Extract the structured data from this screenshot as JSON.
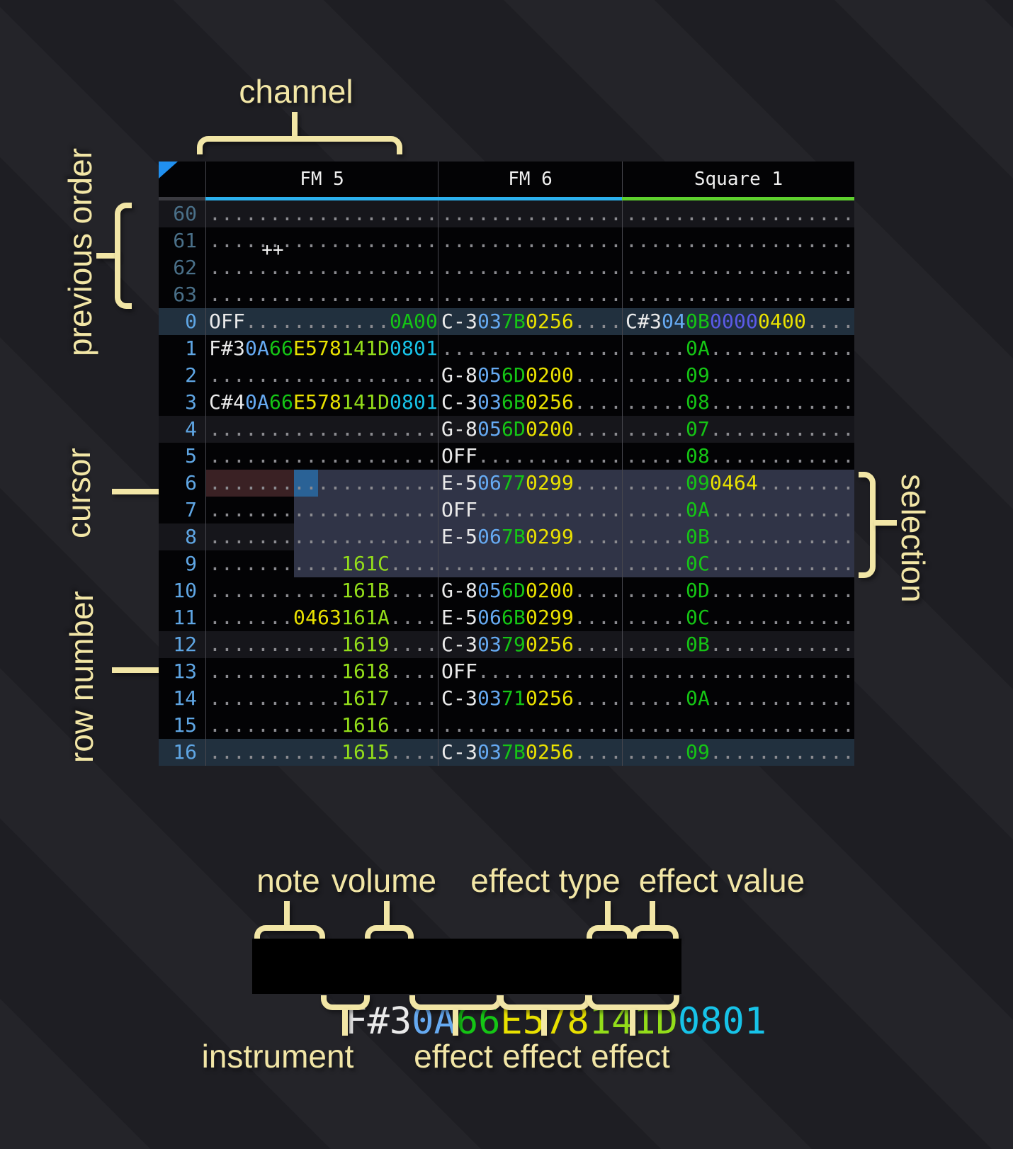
{
  "palette": {
    "khaki": "#f2e6a6",
    "header_text": "#f0f0f0",
    "corner": "#2090f0",
    "rule": "#47474e",
    "hdr_rule": "#3a3a40",
    "row_h4": "#16161b",
    "row_h16": "#21303e",
    "cursor_row": "#3a2124",
    "cursor": "#2a6296",
    "selection": "#303447",
    "rn": "#5fa6e4",
    "rn_past": "#4a7089",
    "note": "#eaeaea",
    "ins": "#66aaf2",
    "vol": "#15c515",
    "fxy": "#e9e100",
    "fxl": "#93dd1a",
    "fxc": "#17c3e8",
    "fxi": "#5a5ae8",
    "fxg": "#15c515",
    "dim": "#8b8b90"
  },
  "header": {
    "corner": "++",
    "channels": [
      {
        "name": "FM 5",
        "accent": "#2cb1ee"
      },
      {
        "name": "FM 6",
        "accent": "#2cb1ee"
      },
      {
        "name": "Square 1",
        "accent": "#5ed02e"
      }
    ]
  },
  "annotations": {
    "channel": "channel",
    "previous_order": "previous order",
    "cursor": "cursor",
    "row_number": "row number",
    "selection": "selection"
  },
  "pattern": {
    "rows": [
      {
        "n": "60",
        "past": true,
        "hl": "h4",
        "ov": "",
        "fm5": [
          [
            "...................",
            "dim"
          ]
        ],
        "fm6": [
          [
            "...............",
            "dim"
          ]
        ],
        "sq1": [
          [
            "...................",
            "dim"
          ]
        ]
      },
      {
        "n": "61",
        "past": true,
        "hl": "",
        "ov": "",
        "fm5": [
          [
            "...................",
            "dim"
          ]
        ],
        "fm6": [
          [
            "...............",
            "dim"
          ]
        ],
        "sq1": [
          [
            "...................",
            "dim"
          ]
        ]
      },
      {
        "n": "62",
        "past": true,
        "hl": "",
        "ov": "",
        "fm5": [
          [
            "...................",
            "dim"
          ]
        ],
        "fm6": [
          [
            "...............",
            "dim"
          ]
        ],
        "sq1": [
          [
            "...................",
            "dim"
          ]
        ]
      },
      {
        "n": "63",
        "past": true,
        "hl": "",
        "ov": "",
        "fm5": [
          [
            "...................",
            "dim"
          ]
        ],
        "fm6": [
          [
            "...............",
            "dim"
          ]
        ],
        "sq1": [
          [
            "...................",
            "dim"
          ]
        ]
      },
      {
        "n": "0",
        "past": false,
        "hl": "h16",
        "ov": "",
        "fm5": [
          [
            "OFF",
            "note"
          ],
          [
            "............",
            "dim"
          ],
          [
            "0A00",
            "fxg"
          ]
        ],
        "fm6": [
          [
            "C-3",
            "note"
          ],
          [
            "03",
            "ins"
          ],
          [
            "7B",
            "vol"
          ],
          [
            "0256",
            "fxy"
          ],
          [
            "....",
            "dim"
          ]
        ],
        "sq1": [
          [
            "C#3",
            "note"
          ],
          [
            "04",
            "ins"
          ],
          [
            "0B",
            "vol"
          ],
          [
            "0000",
            "fxi"
          ],
          [
            "0400",
            "fxy"
          ],
          [
            "....",
            "dim"
          ]
        ]
      },
      {
        "n": "1",
        "past": false,
        "hl": "",
        "ov": "",
        "fm5": [
          [
            "F#3",
            "note"
          ],
          [
            "0A",
            "ins"
          ],
          [
            "66",
            "vol"
          ],
          [
            "E578",
            "fxy"
          ],
          [
            "141D",
            "fxl"
          ],
          [
            "0801",
            "fxc"
          ]
        ],
        "fm6": [
          [
            "...............",
            "dim"
          ]
        ],
        "sq1": [
          [
            ".....",
            "dim"
          ],
          [
            "0A",
            "vol"
          ],
          [
            "............",
            "dim"
          ]
        ]
      },
      {
        "n": "2",
        "past": false,
        "hl": "",
        "ov": "",
        "fm5": [
          [
            "...................",
            "dim"
          ]
        ],
        "fm6": [
          [
            "G-8",
            "note"
          ],
          [
            "05",
            "ins"
          ],
          [
            "6D",
            "vol"
          ],
          [
            "0200",
            "fxy"
          ],
          [
            "....",
            "dim"
          ]
        ],
        "sq1": [
          [
            ".....",
            "dim"
          ],
          [
            "09",
            "vol"
          ],
          [
            "............",
            "dim"
          ]
        ]
      },
      {
        "n": "3",
        "past": false,
        "hl": "",
        "ov": "",
        "fm5": [
          [
            "C#4",
            "note"
          ],
          [
            "0A",
            "ins"
          ],
          [
            "66",
            "vol"
          ],
          [
            "E578",
            "fxy"
          ],
          [
            "141D",
            "fxl"
          ],
          [
            "0801",
            "fxc"
          ]
        ],
        "fm6": [
          [
            "C-3",
            "note"
          ],
          [
            "03",
            "ins"
          ],
          [
            "6B",
            "vol"
          ],
          [
            "0256",
            "fxy"
          ],
          [
            "....",
            "dim"
          ]
        ],
        "sq1": [
          [
            ".....",
            "dim"
          ],
          [
            "08",
            "vol"
          ],
          [
            "............",
            "dim"
          ]
        ]
      },
      {
        "n": "4",
        "past": false,
        "hl": "h4",
        "ov": "",
        "fm5": [
          [
            "...................",
            "dim"
          ]
        ],
        "fm6": [
          [
            "G-8",
            "note"
          ],
          [
            "05",
            "ins"
          ],
          [
            "6D",
            "vol"
          ],
          [
            "0200",
            "fxy"
          ],
          [
            "....",
            "dim"
          ]
        ],
        "sq1": [
          [
            ".....",
            "dim"
          ],
          [
            "07",
            "vol"
          ],
          [
            "............",
            "dim"
          ]
        ]
      },
      {
        "n": "5",
        "past": false,
        "hl": "",
        "ov": "",
        "fm5": [
          [
            "...................",
            "dim"
          ]
        ],
        "fm6": [
          [
            "OFF",
            "note"
          ],
          [
            "............",
            "dim"
          ]
        ],
        "sq1": [
          [
            ".....",
            "dim"
          ],
          [
            "08",
            "vol"
          ],
          [
            "............",
            "dim"
          ]
        ]
      },
      {
        "n": "6",
        "past": false,
        "hl": "",
        "ov": "cursor",
        "fm5": [
          [
            "...................",
            "dim"
          ]
        ],
        "fm6": [
          [
            "E-5",
            "note"
          ],
          [
            "06",
            "ins"
          ],
          [
            "77",
            "vol"
          ],
          [
            "0299",
            "fxy"
          ],
          [
            "....",
            "dim"
          ]
        ],
        "sq1": [
          [
            ".....",
            "dim"
          ],
          [
            "09",
            "vol"
          ],
          [
            "0464",
            "fxy"
          ],
          [
            "........",
            "dim"
          ]
        ]
      },
      {
        "n": "7",
        "past": false,
        "hl": "",
        "ov": "sel",
        "fm5": [
          [
            "...................",
            "dim"
          ]
        ],
        "fm6": [
          [
            "OFF",
            "note"
          ],
          [
            "............",
            "dim"
          ]
        ],
        "sq1": [
          [
            ".....",
            "dim"
          ],
          [
            "0A",
            "vol"
          ],
          [
            "............",
            "dim"
          ]
        ]
      },
      {
        "n": "8",
        "past": false,
        "hl": "h4",
        "ov": "sel",
        "fm5": [
          [
            "...................",
            "dim"
          ]
        ],
        "fm6": [
          [
            "E-5",
            "note"
          ],
          [
            "06",
            "ins"
          ],
          [
            "7B",
            "vol"
          ],
          [
            "0299",
            "fxy"
          ],
          [
            "....",
            "dim"
          ]
        ],
        "sq1": [
          [
            ".....",
            "dim"
          ],
          [
            "0B",
            "vol"
          ],
          [
            "............",
            "dim"
          ]
        ]
      },
      {
        "n": "9",
        "past": false,
        "hl": "",
        "ov": "sel",
        "fm5": [
          [
            "...........",
            "dim"
          ],
          [
            "161C",
            "fxl"
          ],
          [
            "....",
            "dim"
          ]
        ],
        "fm6": [
          [
            "...............",
            "dim"
          ]
        ],
        "sq1": [
          [
            ".....",
            "dim"
          ],
          [
            "0C",
            "vol"
          ],
          [
            "............",
            "dim"
          ]
        ]
      },
      {
        "n": "10",
        "past": false,
        "hl": "",
        "ov": "",
        "fm5": [
          [
            "...........",
            "dim"
          ],
          [
            "161B",
            "fxl"
          ],
          [
            "....",
            "dim"
          ]
        ],
        "fm6": [
          [
            "G-8",
            "note"
          ],
          [
            "05",
            "ins"
          ],
          [
            "6D",
            "vol"
          ],
          [
            "0200",
            "fxy"
          ],
          [
            "....",
            "dim"
          ]
        ],
        "sq1": [
          [
            ".....",
            "dim"
          ],
          [
            "0D",
            "vol"
          ],
          [
            "............",
            "dim"
          ]
        ]
      },
      {
        "n": "11",
        "past": false,
        "hl": "",
        "ov": "",
        "fm5": [
          [
            ".......",
            "dim"
          ],
          [
            "0463",
            "fxy"
          ],
          [
            "161A",
            "fxl"
          ],
          [
            "....",
            "dim"
          ]
        ],
        "fm6": [
          [
            "E-5",
            "note"
          ],
          [
            "06",
            "ins"
          ],
          [
            "6B",
            "vol"
          ],
          [
            "0299",
            "fxy"
          ],
          [
            "....",
            "dim"
          ]
        ],
        "sq1": [
          [
            ".....",
            "dim"
          ],
          [
            "0C",
            "vol"
          ],
          [
            "............",
            "dim"
          ]
        ]
      },
      {
        "n": "12",
        "past": false,
        "hl": "h4",
        "ov": "",
        "fm5": [
          [
            "...........",
            "dim"
          ],
          [
            "1619",
            "fxl"
          ],
          [
            "....",
            "dim"
          ]
        ],
        "fm6": [
          [
            "C-3",
            "note"
          ],
          [
            "03",
            "ins"
          ],
          [
            "79",
            "vol"
          ],
          [
            "0256",
            "fxy"
          ],
          [
            "....",
            "dim"
          ]
        ],
        "sq1": [
          [
            ".....",
            "dim"
          ],
          [
            "0B",
            "vol"
          ],
          [
            "............",
            "dim"
          ]
        ]
      },
      {
        "n": "13",
        "past": false,
        "hl": "",
        "ov": "",
        "fm5": [
          [
            "...........",
            "dim"
          ],
          [
            "1618",
            "fxl"
          ],
          [
            "....",
            "dim"
          ]
        ],
        "fm6": [
          [
            "OFF",
            "note"
          ],
          [
            "............",
            "dim"
          ]
        ],
        "sq1": [
          [
            "...................",
            "dim"
          ]
        ]
      },
      {
        "n": "14",
        "past": false,
        "hl": "",
        "ov": "",
        "fm5": [
          [
            "...........",
            "dim"
          ],
          [
            "1617",
            "fxl"
          ],
          [
            "....",
            "dim"
          ]
        ],
        "fm6": [
          [
            "C-3",
            "note"
          ],
          [
            "03",
            "ins"
          ],
          [
            "71",
            "vol"
          ],
          [
            "0256",
            "fxy"
          ],
          [
            "....",
            "dim"
          ]
        ],
        "sq1": [
          [
            ".....",
            "dim"
          ],
          [
            "0A",
            "vol"
          ],
          [
            "............",
            "dim"
          ]
        ]
      },
      {
        "n": "15",
        "past": false,
        "hl": "",
        "ov": "",
        "fm5": [
          [
            "...........",
            "dim"
          ],
          [
            "1616",
            "fxl"
          ],
          [
            "....",
            "dim"
          ]
        ],
        "fm6": [
          [
            "...............",
            "dim"
          ]
        ],
        "sq1": [
          [
            "...................",
            "dim"
          ]
        ]
      },
      {
        "n": "16",
        "past": false,
        "hl": "h16",
        "ov": "",
        "fm5": [
          [
            "...........",
            "dim"
          ],
          [
            "1615",
            "fxl"
          ],
          [
            "....",
            "dim"
          ]
        ],
        "fm6": [
          [
            "C-3",
            "note"
          ],
          [
            "03",
            "ins"
          ],
          [
            "7B",
            "vol"
          ],
          [
            "0256",
            "fxy"
          ],
          [
            "....",
            "dim"
          ]
        ],
        "sq1": [
          [
            ".....",
            "dim"
          ],
          [
            "09",
            "vol"
          ],
          [
            "............",
            "dim"
          ]
        ]
      }
    ]
  },
  "legend": {
    "text_segments": [
      [
        "F#3",
        "note"
      ],
      [
        "0A",
        "ins"
      ],
      [
        "66",
        "vol"
      ],
      [
        "E578",
        "fxy"
      ],
      [
        "141D",
        "fxl"
      ],
      [
        "0801",
        "fxc"
      ]
    ],
    "top_labels": [
      "note",
      "volume",
      "effect type",
      "effect value"
    ],
    "bottom_labels": [
      "instrument",
      "effect",
      "effect",
      "effect"
    ]
  }
}
